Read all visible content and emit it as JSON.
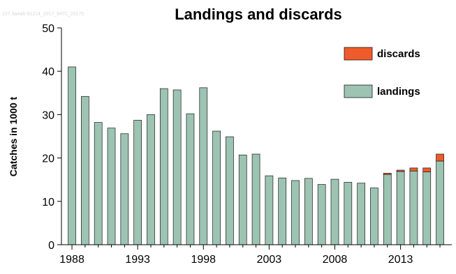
{
  "watermark": "127.3a4a6-91214_2017_8471_20175",
  "colors": {
    "landings": "#9dc3b3",
    "discards": "#ef5b2b",
    "bar_stroke": "#1a1a1a",
    "axis": "#000000"
  },
  "chart_data": {
    "type": "bar",
    "stacked": true,
    "title": "Landings and discards",
    "xlabel": "",
    "ylabel": "Catches in 1000 t",
    "ylim": [
      0,
      50
    ],
    "yticks": [
      0,
      10,
      20,
      30,
      40,
      50
    ],
    "x": [
      1988,
      1989,
      1990,
      1991,
      1992,
      1993,
      1994,
      1995,
      1996,
      1997,
      1998,
      1999,
      2000,
      2001,
      2002,
      2003,
      2004,
      2005,
      2006,
      2007,
      2008,
      2009,
      2010,
      2011,
      2012,
      2013,
      2014,
      2015,
      2016
    ],
    "xtick_labels": [
      "1988",
      "1993",
      "1998",
      "2003",
      "2008",
      "2013"
    ],
    "series": [
      {
        "name": "landings",
        "color": "#9dc3b3",
        "values": [
          41.0,
          34.2,
          28.2,
          26.9,
          25.6,
          28.7,
          30.0,
          36.0,
          35.7,
          30.2,
          36.2,
          26.2,
          24.9,
          20.7,
          20.9,
          15.9,
          15.4,
          14.8,
          15.3,
          13.9,
          15.1,
          14.4,
          14.2,
          13.1,
          16.2,
          16.9,
          17.0,
          16.8,
          19.3
        ]
      },
      {
        "name": "discards",
        "color": "#ef5b2b",
        "values": [
          0,
          0,
          0,
          0,
          0,
          0,
          0,
          0,
          0,
          0,
          0,
          0,
          0,
          0,
          0,
          0,
          0,
          0,
          0,
          0,
          0,
          0,
          0,
          0,
          0.3,
          0.3,
          0.7,
          0.9,
          1.6
        ]
      }
    ],
    "legend": {
      "position": "top-right",
      "items": [
        {
          "label": "discards",
          "color": "#ef5b2b"
        },
        {
          "label": "landings",
          "color": "#9dc3b3"
        }
      ]
    },
    "grid": false
  }
}
